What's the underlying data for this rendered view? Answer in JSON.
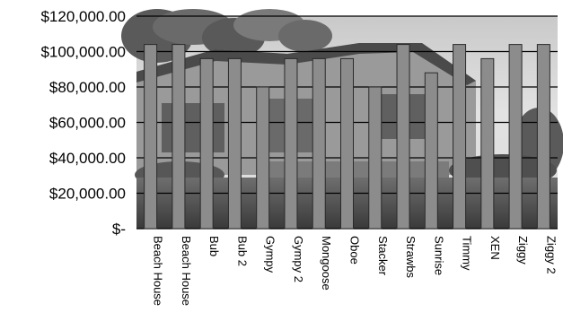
{
  "chart_data": {
    "type": "bar",
    "categories": [
      "Beach House",
      "Beach House",
      "Bub",
      "Bub 2",
      "Gympy",
      "Gympy 2",
      "Mongoose",
      "Oboe",
      "Stacker",
      "Strawbs",
      "Sunrise",
      "Timmy",
      "XEN",
      "Ziggy",
      "Ziggy 2"
    ],
    "values": [
      104000,
      104000,
      96000,
      96000,
      80000,
      96000,
      96000,
      96000,
      80000,
      104000,
      88000,
      104000,
      96000,
      104000,
      104000
    ],
    "ylim": [
      0,
      120000
    ],
    "yticks": [
      0,
      20000,
      40000,
      60000,
      80000,
      100000,
      120000
    ],
    "ytick_labels": [
      "$-",
      "$20,000.00",
      "$40,000.00",
      "$60,000.00",
      "$80,000.00",
      "$100,000.00",
      "$120,000.00"
    ],
    "grid": true,
    "background": "photograph of a house",
    "colors": {
      "bar": "#8c8c8c",
      "bar_edge": "#2a2a2a",
      "grid": "#000000"
    }
  }
}
